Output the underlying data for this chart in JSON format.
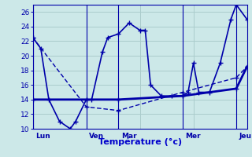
{
  "background_color": "#cce8e8",
  "grid_color": "#aacccc",
  "line_color": "#0000aa",
  "xlabel": "Température (°c)",
  "xlabel_color": "#0000cc",
  "xlim": [
    0,
    40
  ],
  "ylim": [
    10,
    27
  ],
  "ytick_vals": [
    10,
    12,
    14,
    16,
    18,
    20,
    22,
    24,
    26
  ],
  "day_x": [
    0,
    10,
    16,
    28,
    38
  ],
  "day_labels": [
    "Lun",
    "Ven",
    "Mar",
    "Mer",
    "Jeu"
  ],
  "line1_x": [
    0,
    1.5,
    3,
    5,
    7,
    8,
    10,
    11,
    13,
    14,
    16,
    18,
    20,
    21,
    22,
    24,
    26,
    28,
    29,
    30,
    31,
    33,
    35,
    37,
    38,
    40
  ],
  "line1_y": [
    22.5,
    21,
    14,
    11,
    10,
    11,
    14,
    14,
    20.5,
    22.5,
    23,
    24.5,
    23.5,
    23.5,
    16,
    14.5,
    14.5,
    14.5,
    15,
    19,
    15,
    15,
    19,
    25,
    27,
    25
  ],
  "line2_x": [
    0,
    10,
    16,
    28,
    38,
    40
  ],
  "line2_y": [
    14,
    14,
    14,
    14.5,
    15.5,
    18.5
  ],
  "line3_x": [
    0,
    10,
    16,
    28,
    38,
    40
  ],
  "line3_y": [
    22.5,
    13,
    12.5,
    15,
    17,
    18.5
  ]
}
